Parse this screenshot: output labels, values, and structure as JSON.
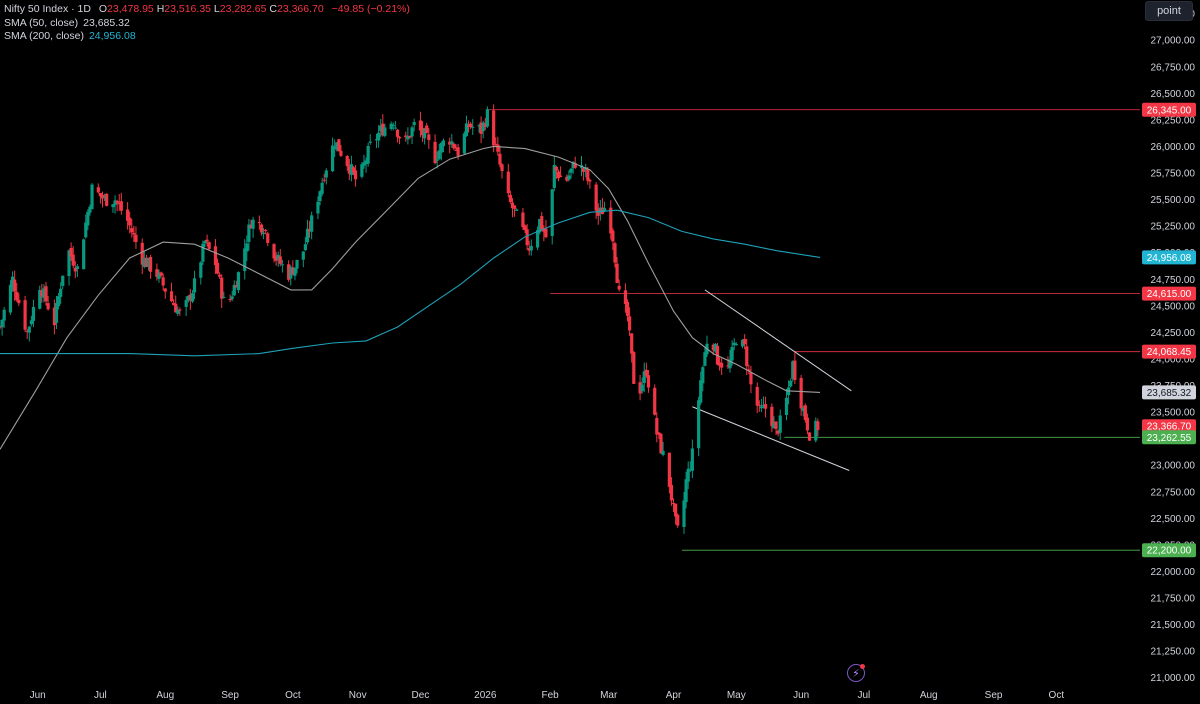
{
  "legend": {
    "symbol": "Nifty 50 Index · 1D",
    "open_label": "O",
    "open": "23,478.95",
    "high_label": "H",
    "high": "23,516.35",
    "low_label": "L",
    "low": "23,282.65",
    "close_label": "C",
    "close": "23,366.70",
    "change": "−49.85 (−0.21%)",
    "sma50_label": "SMA (50, close)",
    "sma50_value": "23,685.32",
    "sma200_label": "SMA (200, close)",
    "sma200_value": "24,956.08"
  },
  "toolbar": {
    "mode_label": "point"
  },
  "colors": {
    "up": "#089981",
    "down": "#f23645",
    "sma50": "#9e9e9e",
    "sma200": "#1ea1b8",
    "support": "#4caf50",
    "resistance": "#f23645",
    "text": "#d1d4dc"
  },
  "icons": {
    "bolt": "lightning-icon"
  },
  "chart_data": {
    "type": "candlestick",
    "title": "Nifty 50 Index · 1D",
    "ylim": [
      20950,
      27350
    ],
    "y_ticks": [
      21000,
      21250,
      21500,
      21750,
      22000,
      22250,
      22500,
      22750,
      23000,
      23250,
      23500,
      23750,
      24000,
      24250,
      24500,
      24750,
      25000,
      25250,
      25500,
      25750,
      26000,
      26250,
      26500,
      26750,
      27000,
      27250
    ],
    "x_ticks": [
      "Jun",
      "Jul",
      "Aug",
      "Sep",
      "Oct",
      "Nov",
      "Dec",
      "2026",
      "Feb",
      "Mar",
      "Apr",
      "May",
      "Jun",
      "Jul",
      "Aug",
      "Sep",
      "Oct"
    ],
    "x_range": [
      "2025-05-14",
      "2026-11-10"
    ],
    "price_labels": [
      {
        "text": "26,345.00",
        "value": 26345,
        "color": "#f23645"
      },
      {
        "text": "24,956.08",
        "value": 24956.08,
        "color": "#22b5d3"
      },
      {
        "text": "24,615.00",
        "value": 24615,
        "color": "#f23645"
      },
      {
        "text": "24,068.45",
        "value": 24068.45,
        "color": "#f23645"
      },
      {
        "text": "23,685.32",
        "value": 23685.32,
        "color": "#d1d4dc"
      },
      {
        "text": "23,366.70",
        "value": 23366.7,
        "color": "#f23645"
      },
      {
        "text": "23,262.55",
        "value": 23262.55,
        "color": "#4caf50"
      },
      {
        "text": "22,200.00",
        "value": 22200,
        "color": "#4caf50"
      }
    ],
    "horizontal_lines": [
      {
        "value": 26345,
        "from": "2026-01-02",
        "color": "#f23645"
      },
      {
        "value": 24615,
        "from": "2026-02-01",
        "color": "#f23645"
      },
      {
        "value": 24068.45,
        "from": "2026-05-29",
        "color": "#f23645"
      },
      {
        "value": 23262.55,
        "from": "2026-05-24",
        "color": "#4caf50"
      },
      {
        "value": 22200,
        "from": "2026-04-05",
        "color": "#4caf50"
      }
    ],
    "trend_lines": [
      {
        "from": [
          "2026-04-16",
          24650
        ],
        "to": [
          "2026-06-25",
          23700
        ],
        "color": "#d1d4dc"
      },
      {
        "from": [
          "2026-04-10",
          23550
        ],
        "to": [
          "2026-06-24",
          22950
        ],
        "color": "#d1d4dc"
      }
    ],
    "close_anchors": [
      [
        "2025-05-14",
        24300
      ],
      [
        "2025-05-20",
        24750
      ],
      [
        "2025-05-27",
        24250
      ],
      [
        "2025-06-02",
        24700
      ],
      [
        "2025-06-09",
        24350
      ],
      [
        "2025-06-15",
        25050
      ],
      [
        "2025-06-20",
        24850
      ],
      [
        "2025-06-27",
        25600
      ],
      [
        "2025-07-03",
        25500
      ],
      [
        "2025-07-08",
        25500
      ],
      [
        "2025-07-14",
        25300
      ],
      [
        "2025-07-21",
        24950
      ],
      [
        "2025-07-28",
        24800
      ],
      [
        "2025-08-04",
        24550
      ],
      [
        "2025-08-09",
        24400
      ],
      [
        "2025-08-15",
        24700
      ],
      [
        "2025-08-20",
        25100
      ],
      [
        "2025-08-25",
        24900
      ],
      [
        "2025-08-30",
        24450
      ],
      [
        "2025-09-05",
        24800
      ],
      [
        "2025-09-11",
        25300
      ],
      [
        "2025-09-17",
        25250
      ],
      [
        "2025-09-23",
        24950
      ],
      [
        "2025-09-29",
        24800
      ],
      [
        "2025-10-05",
        24950
      ],
      [
        "2025-10-10",
        25300
      ],
      [
        "2025-10-16",
        25750
      ],
      [
        "2025-10-21",
        26050
      ],
      [
        "2025-10-27",
        25850
      ],
      [
        "2025-11-01",
        25650
      ],
      [
        "2025-11-07",
        26000
      ],
      [
        "2025-11-12",
        26150
      ],
      [
        "2025-11-18",
        26250
      ],
      [
        "2025-11-23",
        26000
      ],
      [
        "2025-11-28",
        26200
      ],
      [
        "2025-12-03",
        26100
      ],
      [
        "2025-12-08",
        25900
      ],
      [
        "2025-12-14",
        26100
      ],
      [
        "2025-12-19",
        25950
      ],
      [
        "2025-12-24",
        26200
      ],
      [
        "2025-12-30",
        26150
      ],
      [
        "2026-01-02",
        26300
      ],
      [
        "2026-01-07",
        25900
      ],
      [
        "2026-01-12",
        25500
      ],
      [
        "2026-01-17",
        25300
      ],
      [
        "2026-01-22",
        25050
      ],
      [
        "2026-01-27",
        25300
      ],
      [
        "2026-01-31",
        25100
      ],
      [
        "2026-02-03",
        25800
      ],
      [
        "2026-02-08",
        25650
      ],
      [
        "2026-02-13",
        25850
      ],
      [
        "2026-02-18",
        25750
      ],
      [
        "2026-02-24",
        25350
      ],
      [
        "2026-02-28",
        25450
      ],
      [
        "2026-03-03",
        25150
      ],
      [
        "2026-03-06",
        24600
      ],
      [
        "2026-03-10",
        24400
      ],
      [
        "2026-03-14",
        23600
      ],
      [
        "2026-03-19",
        23900
      ],
      [
        "2026-03-24",
        23300
      ],
      [
        "2026-03-29",
        22950
      ],
      [
        "2026-04-02",
        22450
      ],
      [
        "2026-04-04",
        22300
      ],
      [
        "2026-04-07",
        22850
      ],
      [
        "2026-04-10",
        23100
      ],
      [
        "2026-04-14",
        23800
      ],
      [
        "2026-04-18",
        24300
      ],
      [
        "2026-04-22",
        24000
      ],
      [
        "2026-04-27",
        23900
      ],
      [
        "2026-05-01",
        24200
      ],
      [
        "2026-05-05",
        24100
      ],
      [
        "2026-05-08",
        23750
      ],
      [
        "2026-05-12",
        23500
      ],
      [
        "2026-05-16",
        23550
      ],
      [
        "2026-05-20",
        23300
      ],
      [
        "2026-05-24",
        23500
      ],
      [
        "2026-05-28",
        23950
      ],
      [
        "2026-06-01",
        23600
      ],
      [
        "2026-06-05",
        23300
      ],
      [
        "2026-06-09",
        23366.7
      ]
    ],
    "series": [
      {
        "name": "SMA (50, close)",
        "values": [
          [
            "2025-05-14",
            23150
          ],
          [
            "2025-05-31",
            23700
          ],
          [
            "2025-06-15",
            24200
          ],
          [
            "2025-06-30",
            24600
          ],
          [
            "2025-07-15",
            24950
          ],
          [
            "2025-07-31",
            25100
          ],
          [
            "2025-08-15",
            25080
          ],
          [
            "2025-08-31",
            24950
          ],
          [
            "2025-09-15",
            24800
          ],
          [
            "2025-09-30",
            24650
          ],
          [
            "2025-10-10",
            24650
          ],
          [
            "2025-10-20",
            24850
          ],
          [
            "2025-10-31",
            25100
          ],
          [
            "2025-11-15",
            25400
          ],
          [
            "2025-11-30",
            25700
          ],
          [
            "2025-12-15",
            25880
          ],
          [
            "2025-12-31",
            25980
          ],
          [
            "2026-01-05",
            26000
          ],
          [
            "2026-01-20",
            25980
          ],
          [
            "2026-02-05",
            25900
          ],
          [
            "2026-02-20",
            25780
          ],
          [
            "2026-03-01",
            25600
          ],
          [
            "2026-03-10",
            25300
          ],
          [
            "2026-03-20",
            24900
          ],
          [
            "2026-04-01",
            24450
          ],
          [
            "2026-04-10",
            24200
          ],
          [
            "2026-04-20",
            24050
          ],
          [
            "2026-05-01",
            23950
          ],
          [
            "2026-05-15",
            23800
          ],
          [
            "2026-05-25",
            23700
          ],
          [
            "2026-06-10",
            23685.32
          ]
        ]
      },
      {
        "name": "SMA (200, close)",
        "values": [
          [
            "2025-05-14",
            24050
          ],
          [
            "2025-06-15",
            24050
          ],
          [
            "2025-07-15",
            24050
          ],
          [
            "2025-08-15",
            24030
          ],
          [
            "2025-09-15",
            24050
          ],
          [
            "2025-10-01",
            24100
          ],
          [
            "2025-10-20",
            24150
          ],
          [
            "2025-11-05",
            24170
          ],
          [
            "2025-11-20",
            24300
          ],
          [
            "2025-12-05",
            24500
          ],
          [
            "2025-12-20",
            24700
          ],
          [
            "2026-01-05",
            24950
          ],
          [
            "2026-01-20",
            25150
          ],
          [
            "2026-02-05",
            25280
          ],
          [
            "2026-02-20",
            25380
          ],
          [
            "2026-03-05",
            25400
          ],
          [
            "2026-03-20",
            25330
          ],
          [
            "2026-04-05",
            25200
          ],
          [
            "2026-04-20",
            25130
          ],
          [
            "2026-05-05",
            25080
          ],
          [
            "2026-05-20",
            25020
          ],
          [
            "2026-06-10",
            24956.08
          ]
        ]
      }
    ]
  }
}
